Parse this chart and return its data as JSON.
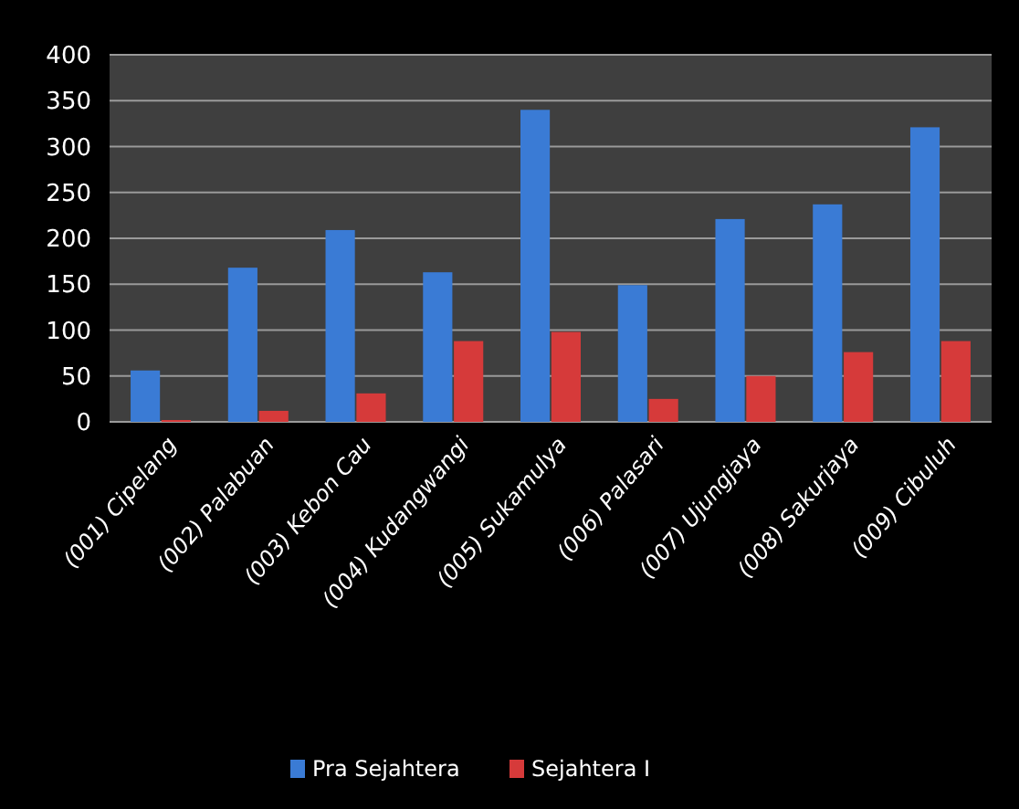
{
  "chart_data": {
    "type": "bar",
    "categories": [
      "(001) Cipelang",
      "(002) Palabuan",
      "(003) Kebon Cau",
      "(004) Kudangwangi",
      "(005) Sukamulya",
      "(006) Palasari",
      "(007) Ujungjaya",
      "(008) Sakurjaya",
      "(009) Cibuluh"
    ],
    "series": [
      {
        "name": "Pra Sejahtera",
        "color": "#3a7bd5",
        "values": [
          56,
          168,
          209,
          163,
          340,
          149,
          221,
          237,
          321
        ]
      },
      {
        "name": "Sejahtera I",
        "color": "#d63a3a",
        "values": [
          2,
          12,
          31,
          88,
          98,
          25,
          50,
          76,
          88
        ]
      }
    ],
    "ylim": [
      0,
      400
    ],
    "yticks": [
      0,
      50,
      100,
      150,
      200,
      250,
      300,
      350,
      400
    ],
    "grid": "y",
    "legend": "bottom"
  }
}
